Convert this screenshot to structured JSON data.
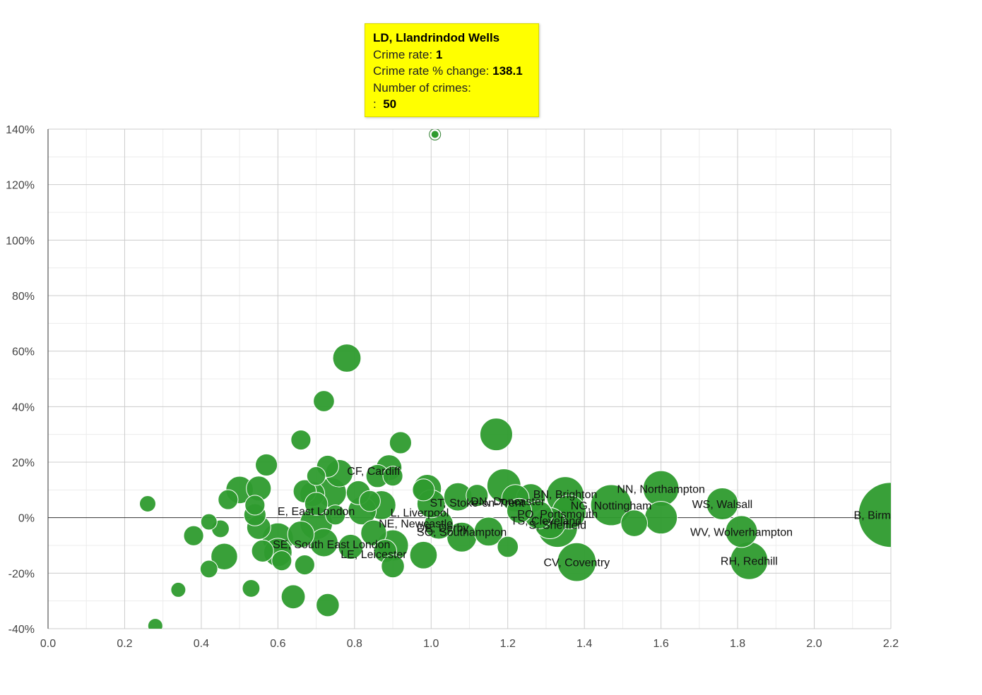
{
  "chart_data": {
    "type": "scatter",
    "style": "bubble",
    "title": "",
    "xlabel": "",
    "ylabel": "",
    "xlim": [
      0,
      2.2
    ],
    "ylim": [
      -40,
      140
    ],
    "x_ticks": [
      0,
      0.2,
      0.4,
      0.6,
      0.8,
      1.0,
      1.2,
      1.4,
      1.6,
      1.8,
      2.0,
      2.2
    ],
    "x_tick_labels": [
      "0.0",
      "0.2",
      "0.4",
      "0.6",
      "0.8",
      "1.0",
      "1.2",
      "1.4",
      "1.6",
      "1.8",
      "2.0",
      "2.2"
    ],
    "y_ticks": [
      -40,
      -20,
      0,
      20,
      40,
      60,
      80,
      100,
      120,
      140
    ],
    "y_tick_labels": [
      "-40%",
      "-20%",
      "0%",
      "20%",
      "40%",
      "60%",
      "80%",
      "100%",
      "120%",
      "140%"
    ],
    "grid": true,
    "color": "#2e9b2e",
    "labels": [
      {
        "text": "LD, Llandrindod Wells",
        "x": 1.01,
        "y": 138.1
      },
      {
        "text": "CF, Cardiff",
        "x": 0.85,
        "y": 17
      },
      {
        "text": "E, East London",
        "x": 0.7,
        "y": 2.5
      },
      {
        "text": "SE, South East London",
        "x": 0.74,
        "y": -9.5
      },
      {
        "text": "LE, Leicester",
        "x": 0.85,
        "y": -13
      },
      {
        "text": "L, Liverpool",
        "x": 0.97,
        "y": 2
      },
      {
        "text": "NE, Newcastle",
        "x": 0.96,
        "y": -2
      },
      {
        "text": "DE, Derby",
        "x": 1.03,
        "y": -3.5
      },
      {
        "text": "SO, Southampton",
        "x": 1.08,
        "y": -5
      },
      {
        "text": "ST, Stoke-on-Trent",
        "x": 1.12,
        "y": 5.5
      },
      {
        "text": "DN, Doncaster",
        "x": 1.2,
        "y": 6
      },
      {
        "text": "BN, Brighton",
        "x": 1.35,
        "y": 8.5
      },
      {
        "text": "PO, Portsmouth",
        "x": 1.33,
        "y": 1.5
      },
      {
        "text": "TS, Cleveland",
        "x": 1.3,
        "y": -1
      },
      {
        "text": "S, Sheffield",
        "x": 1.33,
        "y": -2.5
      },
      {
        "text": "NG, Nottingham",
        "x": 1.47,
        "y": 4.5
      },
      {
        "text": "NN, Northampton",
        "x": 1.6,
        "y": 10.5
      },
      {
        "text": "WS, Walsall",
        "x": 1.76,
        "y": 5
      },
      {
        "text": "WV, Wolverhampton",
        "x": 1.81,
        "y": -5
      },
      {
        "text": "RH, Redhill",
        "x": 1.83,
        "y": -15.5
      },
      {
        "text": "CV, Coventry",
        "x": 1.38,
        "y": -16
      },
      {
        "text": "B, Birmingham",
        "x": 2.2,
        "y": 1
      }
    ],
    "points": [
      {
        "x": 1.01,
        "y": 138.1,
        "size": 50
      },
      {
        "x": 0.26,
        "y": 5,
        "size": 30
      },
      {
        "x": 0.28,
        "y": -39,
        "size": 25
      },
      {
        "x": 0.34,
        "y": -26,
        "size": 25
      },
      {
        "x": 0.38,
        "y": -6.5,
        "size": 45
      },
      {
        "x": 0.42,
        "y": -1.5,
        "size": 30
      },
      {
        "x": 0.42,
        "y": -18.5,
        "size": 35
      },
      {
        "x": 0.45,
        "y": -4,
        "size": 35
      },
      {
        "x": 0.46,
        "y": -14,
        "size": 80
      },
      {
        "x": 0.47,
        "y": 6.5,
        "size": 45
      },
      {
        "x": 0.5,
        "y": 10,
        "size": 85
      },
      {
        "x": 0.53,
        "y": -25.5,
        "size": 35
      },
      {
        "x": 0.54,
        "y": 4.5,
        "size": 45
      },
      {
        "x": 0.54,
        "y": 1,
        "size": 55
      },
      {
        "x": 0.55,
        "y": 10.5,
        "size": 70
      },
      {
        "x": 0.55,
        "y": -3.5,
        "size": 65
      },
      {
        "x": 0.56,
        "y": -12,
        "size": 55
      },
      {
        "x": 0.57,
        "y": 19,
        "size": 55
      },
      {
        "x": 0.6,
        "y": -7.5,
        "size": 110
      },
      {
        "x": 0.6,
        "y": -12.5,
        "size": 90
      },
      {
        "x": 0.61,
        "y": -15.5,
        "size": 45
      },
      {
        "x": 0.64,
        "y": -28.5,
        "size": 65
      },
      {
        "x": 0.66,
        "y": 28,
        "size": 45
      },
      {
        "x": 0.66,
        "y": -6,
        "size": 80
      },
      {
        "x": 0.67,
        "y": 9.5,
        "size": 60
      },
      {
        "x": 0.67,
        "y": -17,
        "size": 45
      },
      {
        "x": 0.69,
        "y": 8.5,
        "size": 70
      },
      {
        "x": 0.7,
        "y": 15,
        "size": 40
      },
      {
        "x": 0.7,
        "y": 5,
        "size": 60
      },
      {
        "x": 0.7,
        "y": -2,
        "size": 120
      },
      {
        "x": 0.72,
        "y": 42,
        "size": 50
      },
      {
        "x": 0.72,
        "y": -9,
        "size": 90
      },
      {
        "x": 0.73,
        "y": 18.5,
        "size": 55
      },
      {
        "x": 0.73,
        "y": -31.5,
        "size": 60
      },
      {
        "x": 0.74,
        "y": 9,
        "size": 100
      },
      {
        "x": 0.75,
        "y": 1,
        "size": 45
      },
      {
        "x": 0.76,
        "y": 16,
        "size": 85
      },
      {
        "x": 0.78,
        "y": 57.5,
        "size": 90
      },
      {
        "x": 0.79,
        "y": -10.5,
        "size": 70
      },
      {
        "x": 0.81,
        "y": 9,
        "size": 65
      },
      {
        "x": 0.82,
        "y": 2.5,
        "size": 90
      },
      {
        "x": 0.84,
        "y": 6,
        "size": 50
      },
      {
        "x": 0.85,
        "y": -5.5,
        "size": 75
      },
      {
        "x": 0.87,
        "y": 4.5,
        "size": 95
      },
      {
        "x": 0.86,
        "y": 15,
        "size": 60
      },
      {
        "x": 0.88,
        "y": -12,
        "size": 60
      },
      {
        "x": 0.89,
        "y": 18,
        "size": 75
      },
      {
        "x": 0.9,
        "y": 15,
        "size": 45
      },
      {
        "x": 0.9,
        "y": -10,
        "size": 110
      },
      {
        "x": 0.9,
        "y": -17.5,
        "size": 60
      },
      {
        "x": 0.92,
        "y": 27,
        "size": 55
      },
      {
        "x": 0.98,
        "y": -13.5,
        "size": 85
      },
      {
        "x": 0.98,
        "y": 10,
        "size": 55
      },
      {
        "x": 0.99,
        "y": 10.5,
        "size": 90
      },
      {
        "x": 1.0,
        "y": 5,
        "size": 90
      },
      {
        "x": 1.02,
        "y": -2.5,
        "size": 95
      },
      {
        "x": 1.07,
        "y": 7.5,
        "size": 90
      },
      {
        "x": 1.08,
        "y": -7,
        "size": 100
      },
      {
        "x": 1.12,
        "y": 8,
        "size": 55
      },
      {
        "x": 1.15,
        "y": -5,
        "size": 95
      },
      {
        "x": 1.17,
        "y": 30,
        "size": 120
      },
      {
        "x": 1.19,
        "y": 11.5,
        "size": 130
      },
      {
        "x": 1.2,
        "y": -10.5,
        "size": 50
      },
      {
        "x": 1.22,
        "y": 7,
        "size": 85
      },
      {
        "x": 1.23,
        "y": 2.5,
        "size": 70
      },
      {
        "x": 1.26,
        "y": 7,
        "size": 95
      },
      {
        "x": 1.28,
        "y": 1,
        "size": 90
      },
      {
        "x": 1.31,
        "y": -2,
        "size": 110
      },
      {
        "x": 1.33,
        "y": -3.5,
        "size": 180
      },
      {
        "x": 1.35,
        "y": 8,
        "size": 160
      },
      {
        "x": 1.36,
        "y": 2,
        "size": 130
      },
      {
        "x": 1.38,
        "y": -16,
        "size": 170
      },
      {
        "x": 1.47,
        "y": 4.5,
        "size": 190
      },
      {
        "x": 1.53,
        "y": -2,
        "size": 80
      },
      {
        "x": 1.6,
        "y": 10.5,
        "size": 145
      },
      {
        "x": 1.6,
        "y": 0,
        "size": 120
      },
      {
        "x": 1.76,
        "y": 5,
        "size": 115
      },
      {
        "x": 1.81,
        "y": -5,
        "size": 115
      },
      {
        "x": 1.83,
        "y": -15.5,
        "size": 160
      },
      {
        "x": 2.2,
        "y": 1,
        "size": 480
      }
    ],
    "tooltip": {
      "title": "LD, Llandrindod Wells",
      "crime_rate_label": "Crime rate:",
      "crime_rate_value": "1",
      "change_label": "Crime rate % change:",
      "change_value": "138.1",
      "crimes_label": "Number of crimes:",
      "crimes_prefix": ":",
      "crimes_value": "50"
    }
  }
}
